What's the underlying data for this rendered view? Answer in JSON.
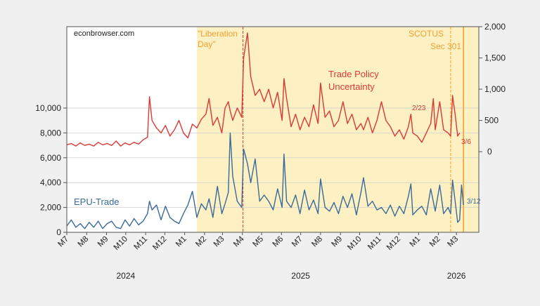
{
  "chart_data": {
    "type": "line",
    "watermark": "econbrowser.com",
    "x_axis": {
      "type": "date",
      "range": [
        "2024-07-01",
        "2026-04-05"
      ],
      "tick_labels": [
        "M7",
        "M8",
        "M9",
        "M10",
        "M11",
        "M12",
        "M1",
        "M2",
        "M3",
        "M4",
        "M5",
        "M6",
        "M7",
        "M8",
        "M9",
        "M10",
        "M11",
        "M12",
        "M1",
        "M2",
        "M3"
      ],
      "tick_dates": [
        "2024-07-01",
        "2024-08-01",
        "2024-09-01",
        "2024-10-01",
        "2024-11-01",
        "2024-12-01",
        "2025-01-01",
        "2025-02-01",
        "2025-03-01",
        "2025-04-01",
        "2025-05-01",
        "2025-06-01",
        "2025-07-01",
        "2025-08-01",
        "2025-09-01",
        "2025-10-01",
        "2025-11-01",
        "2025-12-01",
        "2026-01-01",
        "2026-02-01",
        "2026-03-01"
      ],
      "year_labels": [
        {
          "label": "2024",
          "date": "2024-10-01"
        },
        {
          "label": "2025",
          "date": "2025-07-01"
        },
        {
          "label": "2026",
          "date": "2026-03-01"
        }
      ]
    },
    "y_left": {
      "range": [
        0,
        16550
      ],
      "ticks": [
        0,
        2000,
        4000,
        6000,
        8000,
        10000
      ],
      "tick_labels": [
        "0",
        "2,000",
        "4,000",
        "6,000",
        "8,000",
        "10,000"
      ]
    },
    "y_right": {
      "range": [
        -1290,
        2000
      ],
      "ticks": [
        0,
        500,
        1000,
        1500,
        2000
      ],
      "tick_labels": [
        "0",
        "500",
        "1,000",
        "1,500",
        "2,000"
      ]
    },
    "grid": true,
    "shaded_region": {
      "start": "2025-01-20",
      "end": "2026-04-05",
      "color": "#fdf0c2"
    },
    "vertical_lines": [
      {
        "date": "2025-04-02",
        "color": "#d93a35",
        "style": "dashed"
      },
      {
        "date": "2026-02-20",
        "color": "#f7a030",
        "style": "dashed"
      },
      {
        "date": "2026-03-12",
        "color": "#f7a030",
        "style": "solid"
      }
    ],
    "annotations": [
      {
        "text": "\"Liberation",
        "color": "#f7a030"
      },
      {
        "text": "Day\"",
        "color": "#f7a030"
      },
      {
        "text": "SCOTUS",
        "color": "#f7a030"
      },
      {
        "text": "Sec 301",
        "color": "#f7a030"
      },
      {
        "text": "2/23",
        "color": "#d93a35"
      },
      {
        "text": "3/6",
        "color": "#d93a35"
      },
      {
        "text": "3/12",
        "color": "#3a6a9a"
      }
    ],
    "series": [
      {
        "name": "Trade Policy Uncertainty",
        "label_lines": [
          "Trade Policy",
          "Uncertainty"
        ],
        "axis": "right",
        "color": "#d93a35",
        "points": [
          [
            "2024-07-01",
            110
          ],
          [
            "2024-07-08",
            130
          ],
          [
            "2024-07-15",
            90
          ],
          [
            "2024-07-22",
            140
          ],
          [
            "2024-07-29",
            100
          ],
          [
            "2024-08-05",
            120
          ],
          [
            "2024-08-12",
            90
          ],
          [
            "2024-08-19",
            150
          ],
          [
            "2024-08-26",
            110
          ],
          [
            "2024-09-02",
            130
          ],
          [
            "2024-09-09",
            100
          ],
          [
            "2024-09-16",
            170
          ],
          [
            "2024-09-23",
            90
          ],
          [
            "2024-09-30",
            140
          ],
          [
            "2024-10-07",
            110
          ],
          [
            "2024-10-14",
            150
          ],
          [
            "2024-10-21",
            120
          ],
          [
            "2024-10-28",
            190
          ],
          [
            "2024-11-04",
            230
          ],
          [
            "2024-11-07",
            880
          ],
          [
            "2024-11-11",
            500
          ],
          [
            "2024-11-18",
            380
          ],
          [
            "2024-11-25",
            300
          ],
          [
            "2024-12-02",
            420
          ],
          [
            "2024-12-09",
            250
          ],
          [
            "2024-12-16",
            350
          ],
          [
            "2024-12-23",
            500
          ],
          [
            "2024-12-30",
            300
          ],
          [
            "2025-01-06",
            220
          ],
          [
            "2025-01-13",
            440
          ],
          [
            "2025-01-20",
            380
          ],
          [
            "2025-01-27",
            520
          ],
          [
            "2025-02-03",
            600
          ],
          [
            "2025-02-08",
            850
          ],
          [
            "2025-02-14",
            420
          ],
          [
            "2025-02-21",
            550
          ],
          [
            "2025-02-28",
            300
          ],
          [
            "2025-03-05",
            700
          ],
          [
            "2025-03-10",
            800
          ],
          [
            "2025-03-13",
            650
          ],
          [
            "2025-03-17",
            500
          ],
          [
            "2025-03-24",
            700
          ],
          [
            "2025-03-31",
            550
          ],
          [
            "2025-04-03",
            1500
          ],
          [
            "2025-04-09",
            1900
          ],
          [
            "2025-04-14",
            1200
          ],
          [
            "2025-04-21",
            900
          ],
          [
            "2025-04-28",
            1000
          ],
          [
            "2025-05-05",
            800
          ],
          [
            "2025-05-12",
            1000
          ],
          [
            "2025-05-19",
            700
          ],
          [
            "2025-05-26",
            950
          ],
          [
            "2025-06-02",
            500
          ],
          [
            "2025-06-05",
            1170
          ],
          [
            "2025-06-09",
            850
          ],
          [
            "2025-06-16",
            400
          ],
          [
            "2025-06-23",
            600
          ],
          [
            "2025-06-30",
            350
          ],
          [
            "2025-07-07",
            550
          ],
          [
            "2025-07-14",
            400
          ],
          [
            "2025-07-21",
            750
          ],
          [
            "2025-07-28",
            450
          ],
          [
            "2025-08-01",
            1100
          ],
          [
            "2025-08-08",
            550
          ],
          [
            "2025-08-15",
            650
          ],
          [
            "2025-08-22",
            400
          ],
          [
            "2025-08-29",
            500
          ],
          [
            "2025-09-05",
            800
          ],
          [
            "2025-09-12",
            450
          ],
          [
            "2025-09-19",
            600
          ],
          [
            "2025-09-26",
            350
          ],
          [
            "2025-10-03",
            450
          ],
          [
            "2025-10-07",
            350
          ],
          [
            "2025-10-14",
            550
          ],
          [
            "2025-10-21",
            300
          ],
          [
            "2025-10-28",
            500
          ],
          [
            "2025-11-04",
            800
          ],
          [
            "2025-11-11",
            500
          ],
          [
            "2025-11-18",
            400
          ],
          [
            "2025-11-25",
            250
          ],
          [
            "2025-12-02",
            350
          ],
          [
            "2025-12-09",
            200
          ],
          [
            "2025-12-16",
            400
          ],
          [
            "2025-12-20",
            600
          ],
          [
            "2025-12-23",
            300
          ],
          [
            "2025-12-30",
            250
          ],
          [
            "2026-01-06",
            150
          ],
          [
            "2026-01-13",
            300
          ],
          [
            "2026-01-20",
            450
          ],
          [
            "2026-01-24",
            850
          ],
          [
            "2026-01-27",
            350
          ],
          [
            "2026-02-03",
            800
          ],
          [
            "2026-02-09",
            350
          ],
          [
            "2026-02-16",
            300
          ],
          [
            "2026-02-20",
            250
          ],
          [
            "2026-02-23",
            900
          ],
          [
            "2026-02-27",
            600
          ],
          [
            "2026-03-03",
            250
          ],
          [
            "2026-03-06",
            300
          ]
        ]
      },
      {
        "name": "EPU-Trade",
        "label_lines": [
          "EPU-Trade"
        ],
        "axis": "left",
        "color": "#3a6a9a",
        "points": [
          [
            "2024-07-01",
            500
          ],
          [
            "2024-07-08",
            1000
          ],
          [
            "2024-07-15",
            400
          ],
          [
            "2024-07-22",
            700
          ],
          [
            "2024-07-29",
            300
          ],
          [
            "2024-08-05",
            800
          ],
          [
            "2024-08-12",
            400
          ],
          [
            "2024-08-19",
            900
          ],
          [
            "2024-08-26",
            300
          ],
          [
            "2024-09-02",
            700
          ],
          [
            "2024-09-09",
            900
          ],
          [
            "2024-09-16",
            400
          ],
          [
            "2024-09-23",
            300
          ],
          [
            "2024-09-30",
            1000
          ],
          [
            "2024-10-07",
            500
          ],
          [
            "2024-10-14",
            1100
          ],
          [
            "2024-10-21",
            600
          ],
          [
            "2024-10-28",
            900
          ],
          [
            "2024-11-04",
            1500
          ],
          [
            "2024-11-07",
            2500
          ],
          [
            "2024-11-11",
            1800
          ],
          [
            "2024-11-18",
            2200
          ],
          [
            "2024-11-25",
            1000
          ],
          [
            "2024-12-02",
            2100
          ],
          [
            "2024-12-09",
            1200
          ],
          [
            "2024-12-16",
            900
          ],
          [
            "2024-12-23",
            700
          ],
          [
            "2024-12-30",
            1500
          ],
          [
            "2025-01-06",
            2200
          ],
          [
            "2025-01-13",
            3300
          ],
          [
            "2025-01-20",
            1200
          ],
          [
            "2025-01-27",
            2300
          ],
          [
            "2025-02-03",
            1800
          ],
          [
            "2025-02-08",
            2700
          ],
          [
            "2025-02-14",
            1200
          ],
          [
            "2025-02-21",
            3700
          ],
          [
            "2025-02-28",
            1500
          ],
          [
            "2025-03-05",
            2300
          ],
          [
            "2025-03-10",
            3200
          ],
          [
            "2025-03-13",
            8000
          ],
          [
            "2025-03-17",
            4500
          ],
          [
            "2025-03-24",
            2500
          ],
          [
            "2025-03-31",
            2000
          ],
          [
            "2025-04-03",
            6700
          ],
          [
            "2025-04-09",
            5500
          ],
          [
            "2025-04-14",
            4000
          ],
          [
            "2025-04-21",
            5900
          ],
          [
            "2025-04-28",
            2500
          ],
          [
            "2025-05-05",
            3000
          ],
          [
            "2025-05-12",
            2500
          ],
          [
            "2025-05-19",
            1800
          ],
          [
            "2025-05-26",
            3500
          ],
          [
            "2025-06-02",
            2000
          ],
          [
            "2025-06-05",
            6300
          ],
          [
            "2025-06-09",
            2500
          ],
          [
            "2025-06-16",
            2000
          ],
          [
            "2025-06-23",
            3000
          ],
          [
            "2025-06-30",
            1500
          ],
          [
            "2025-07-07",
            3400
          ],
          [
            "2025-07-14",
            1800
          ],
          [
            "2025-07-21",
            2600
          ],
          [
            "2025-07-28",
            1500
          ],
          [
            "2025-08-01",
            4300
          ],
          [
            "2025-08-08",
            2000
          ],
          [
            "2025-08-15",
            1700
          ],
          [
            "2025-08-22",
            2400
          ],
          [
            "2025-08-29",
            1500
          ],
          [
            "2025-09-05",
            2900
          ],
          [
            "2025-09-12",
            2000
          ],
          [
            "2025-09-19",
            3100
          ],
          [
            "2025-09-26",
            1400
          ],
          [
            "2025-10-03",
            3200
          ],
          [
            "2025-10-07",
            4400
          ],
          [
            "2025-10-14",
            2100
          ],
          [
            "2025-10-21",
            2500
          ],
          [
            "2025-10-28",
            1800
          ],
          [
            "2025-11-04",
            2000
          ],
          [
            "2025-11-11",
            1500
          ],
          [
            "2025-11-18",
            2200
          ],
          [
            "2025-11-25",
            1300
          ],
          [
            "2025-12-02",
            2100
          ],
          [
            "2025-12-09",
            1500
          ],
          [
            "2025-12-16",
            2900
          ],
          [
            "2025-12-20",
            3900
          ],
          [
            "2025-12-23",
            1400
          ],
          [
            "2025-12-30",
            1800
          ],
          [
            "2026-01-06",
            2100
          ],
          [
            "2026-01-13",
            1400
          ],
          [
            "2026-01-20",
            3500
          ],
          [
            "2026-01-27",
            1700
          ],
          [
            "2026-02-03",
            3800
          ],
          [
            "2026-02-09",
            1500
          ],
          [
            "2026-02-16",
            2000
          ],
          [
            "2026-02-20",
            1500
          ],
          [
            "2026-02-23",
            4200
          ],
          [
            "2026-02-27",
            2500
          ],
          [
            "2026-03-03",
            800
          ],
          [
            "2026-03-06",
            1000
          ],
          [
            "2026-03-09",
            3800
          ],
          [
            "2026-03-12",
            2200
          ]
        ]
      }
    ]
  }
}
